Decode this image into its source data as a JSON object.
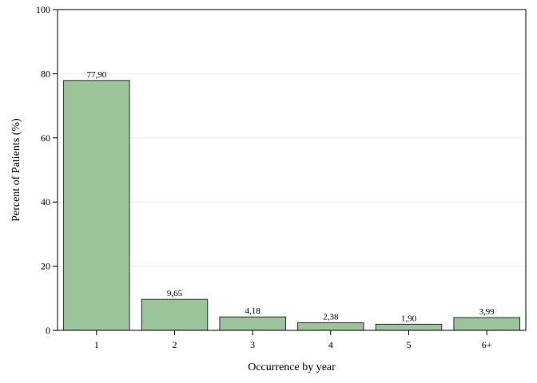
{
  "chart_data": {
    "type": "bar",
    "categories": [
      "1",
      "2",
      "3",
      "4",
      "5",
      "6+"
    ],
    "values": [
      77.9,
      9.65,
      4.18,
      2.38,
      1.9,
      3.99
    ],
    "value_labels": [
      "77,90",
      "9,65",
      "4,18",
      "2,38",
      "1,90",
      "3,99"
    ],
    "title": "",
    "xlabel": "Occurrence by year",
    "ylabel": "Percent of Patients (%)",
    "ylim": [
      0,
      100
    ],
    "yticks": [
      0,
      20,
      40,
      60,
      80,
      100
    ],
    "grid": "horizontal",
    "legend": "none",
    "colors": {
      "bar_fill": "#9bc49b",
      "bar_stroke": "#2e2e2e",
      "grid": "#ececec",
      "axis": "#000000"
    }
  }
}
